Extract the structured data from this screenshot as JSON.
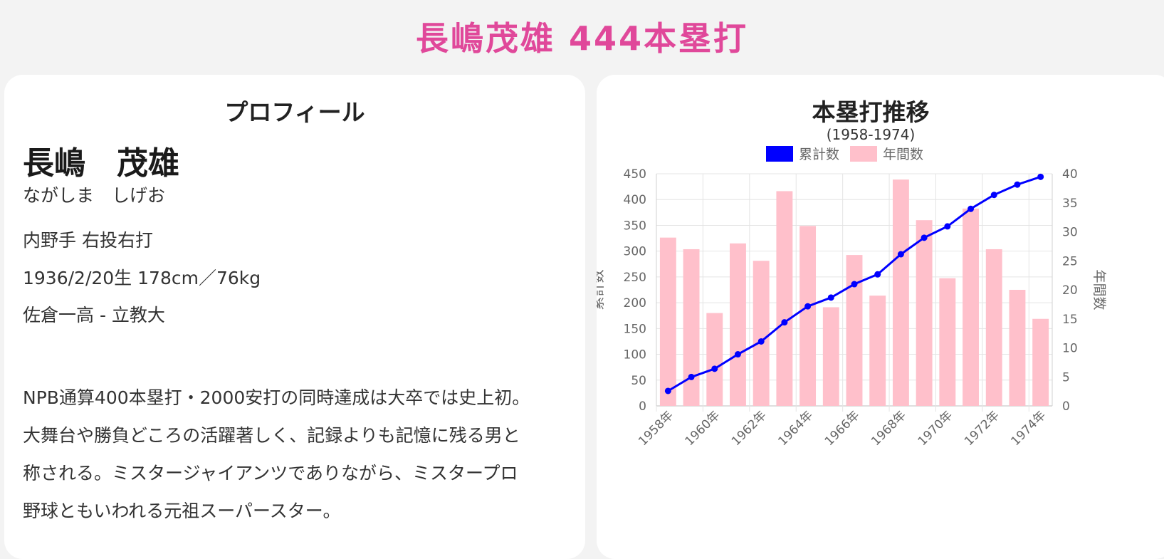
{
  "page_title": "長嶋茂雄 444本塁打",
  "profile": {
    "heading": "プロフィール",
    "name_kanji": "長嶋　茂雄",
    "name_kana": "ながしま　しげお",
    "position": "内野手 右投右打",
    "birth_body": "1936/2/20生 178cm／76kg",
    "school": "佐倉一高 - 立教大",
    "bio_lines": [
      "NPB通算400本塁打・2000安打の同時達成は大卒では史上初。",
      "大舞台や勝負どころの活躍著しく、記録よりも記憶に残る男と",
      "称される。ミスタージャイアンツでありながら、ミスタープロ",
      "野球ともいわれる元祖スーパースター。"
    ]
  },
  "chart_data": {
    "type": "bar",
    "title": "本塁打推移",
    "subtitle": "(1958-1974)",
    "categories": [
      "1958年",
      "1959年",
      "1960年",
      "1961年",
      "1962年",
      "1963年",
      "1964年",
      "1965年",
      "1966年",
      "1967年",
      "1968年",
      "1969年",
      "1970年",
      "1971年",
      "1972年",
      "1973年",
      "1974年"
    ],
    "x_tick_labels": [
      "1958年",
      "1960年",
      "1962年",
      "1964年",
      "1966年",
      "1968年",
      "1970年",
      "1972年",
      "1974年"
    ],
    "series": [
      {
        "name": "累計数",
        "type": "line",
        "axis": "left",
        "color": "#0000ff",
        "values": [
          29,
          56,
          72,
          100,
          125,
          162,
          193,
          210,
          236,
          255,
          294,
          326,
          348,
          382,
          409,
          429,
          444
        ]
      },
      {
        "name": "年間数",
        "type": "bar",
        "axis": "right",
        "color": "#ffc0cb",
        "values": [
          29,
          27,
          16,
          28,
          25,
          37,
          31,
          17,
          26,
          19,
          39,
          32,
          22,
          34,
          27,
          20,
          15
        ]
      }
    ],
    "y_left": {
      "label": "累計数",
      "min": 0,
      "max": 450,
      "ticks": [
        0,
        50,
        100,
        150,
        200,
        250,
        300,
        350,
        400,
        450
      ]
    },
    "y_right": {
      "label": "年間数",
      "min": 0,
      "max": 40,
      "ticks": [
        0,
        5,
        10,
        15,
        20,
        25,
        30,
        35,
        40
      ]
    },
    "legend": {
      "position": "top",
      "entries": [
        "累計数",
        "年間数"
      ]
    },
    "grid": true
  }
}
